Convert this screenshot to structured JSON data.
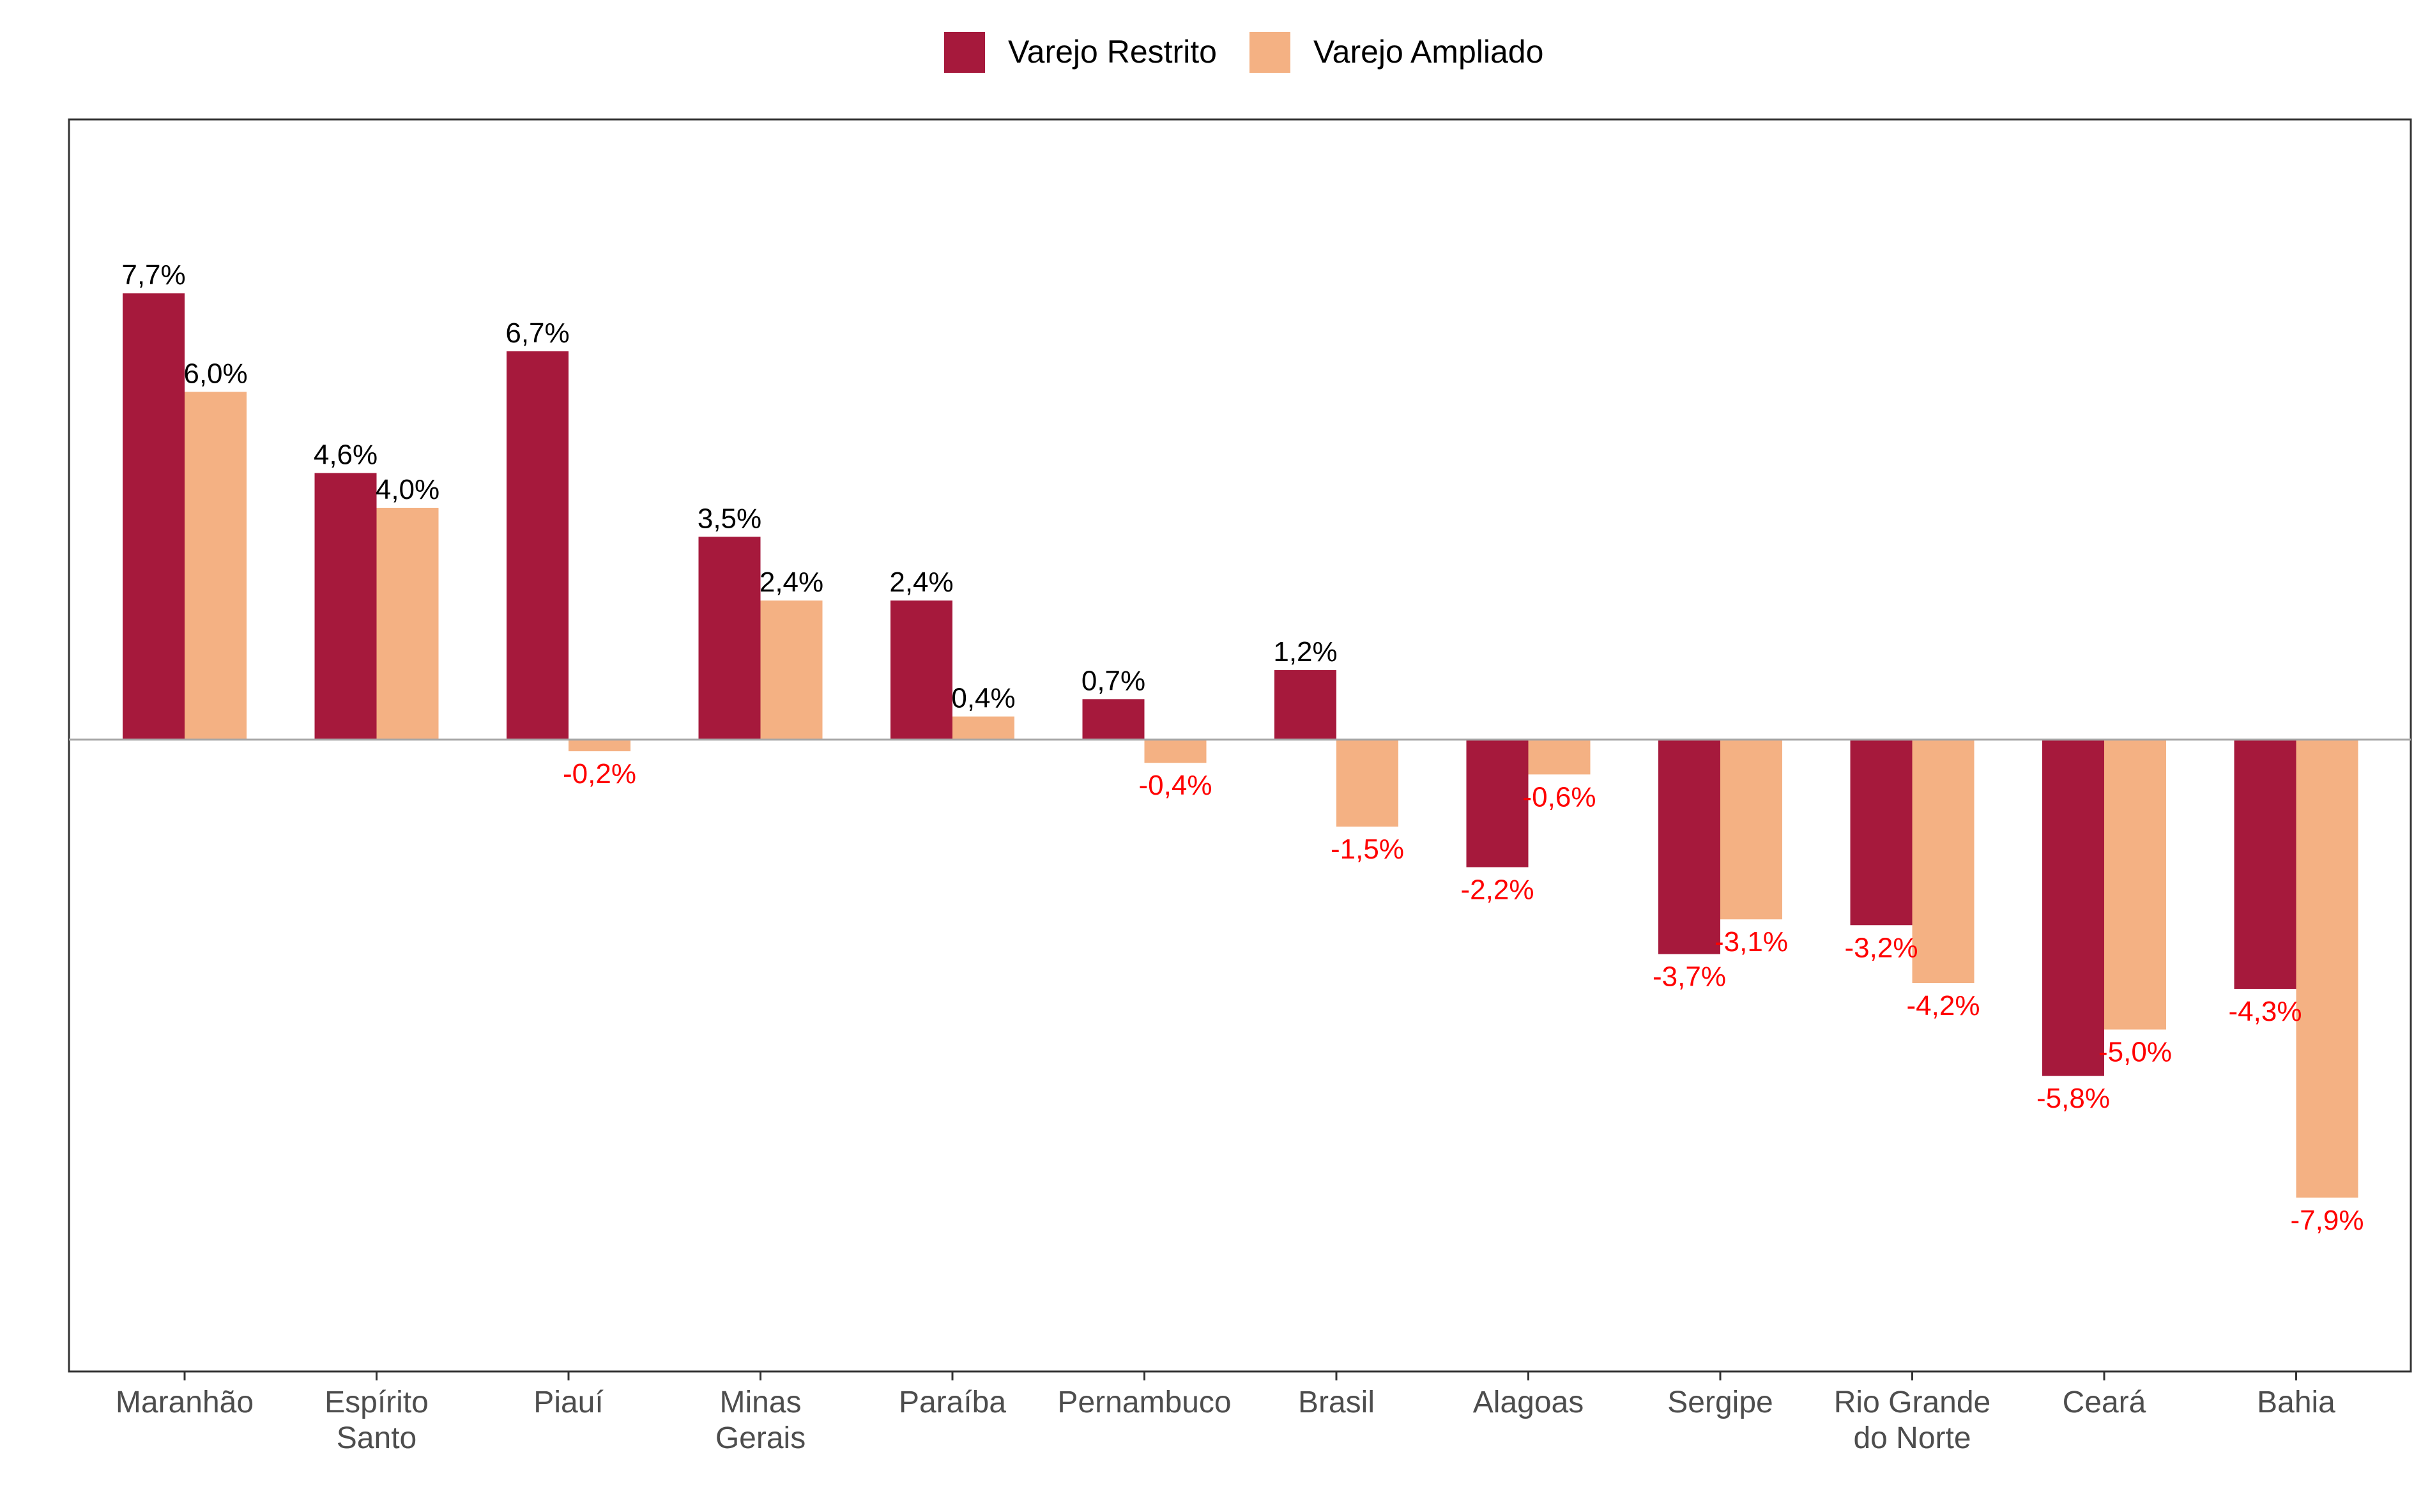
{
  "chart_data": {
    "type": "bar",
    "categories": [
      "Maranhão",
      "Espírito Santo",
      "Piauí",
      "Minas Gerais",
      "Paraíba",
      "Pernambuco",
      "Brasil",
      "Alagoas",
      "Sergipe",
      "Rio Grande do Norte",
      "Ceará",
      "Bahia"
    ],
    "category_label_lines": [
      [
        "Maranhão"
      ],
      [
        "Espírito",
        "Santo"
      ],
      [
        "Piauí"
      ],
      [
        "Minas",
        "Gerais"
      ],
      [
        "Paraíba"
      ],
      [
        "Pernambuco"
      ],
      [
        "Brasil"
      ],
      [
        "Alagoas"
      ],
      [
        "Sergipe"
      ],
      [
        "Rio Grande",
        "do Norte"
      ],
      [
        "Ceará"
      ],
      [
        "Bahia"
      ]
    ],
    "series": [
      {
        "name": "Varejo Restrito",
        "color": "#A6193C",
        "values": [
          7.7,
          4.6,
          6.7,
          3.5,
          2.4,
          0.7,
          1.2,
          -2.2,
          -3.7,
          -3.2,
          -5.8,
          -4.3
        ],
        "labels": [
          "7,7%",
          "4,6%",
          "6,7%",
          "3,5%",
          "2,4%",
          "0,7%",
          "1,2%",
          "-2,2%",
          "-3,7%",
          "-3,2%",
          "-5,8%",
          "-4,3%"
        ]
      },
      {
        "name": "Varejo Ampliado",
        "color": "#F4B183",
        "values": [
          6.0,
          4.0,
          -0.2,
          2.4,
          0.4,
          -0.4,
          -1.5,
          -0.6,
          -3.1,
          -4.2,
          -5.0,
          -7.9
        ],
        "labels": [
          "6,0%",
          "4,0%",
          "-0,2%",
          "2,4%",
          "0,4%",
          "-0,4%",
          "-1,5%",
          "-0,6%",
          "-3,1%",
          "-4,2%",
          "-5,0%",
          "-7,9%"
        ]
      }
    ],
    "ylim": [
      -10.9,
      10.7
    ],
    "grid": false,
    "legend_position": "top-center",
    "positive_label_color": "#000000",
    "negative_label_color": "#FF0000",
    "axis_text_color": "#4D4D4D",
    "zero_line_color": "#A6A6A6",
    "frame_color": "#333333",
    "title": "",
    "xlabel": "",
    "ylabel": ""
  }
}
